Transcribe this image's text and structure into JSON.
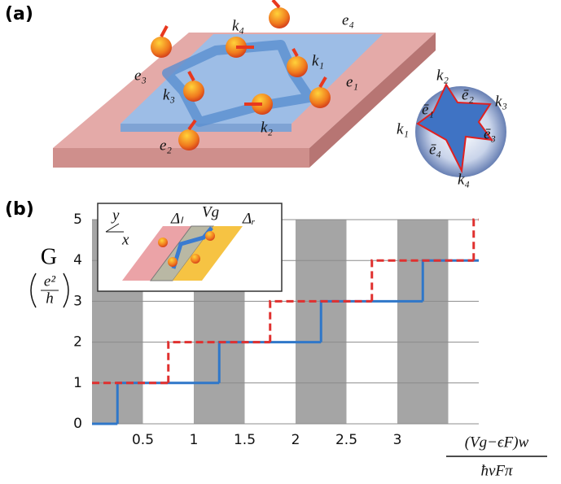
{
  "panel_a": {
    "label": "(a)",
    "labels": [
      "k₄",
      "e₄",
      "k₁",
      "e₁",
      "e₃",
      "k₃",
      "k₂",
      "e₂"
    ],
    "circle_labels": [
      "k₂",
      "ē₂",
      "k₃",
      "ē₁",
      "ē₃",
      "k₁",
      "ē₄",
      "k₄"
    ]
  },
  "chart_data": {
    "type": "step",
    "panel_label": "(b)",
    "y_label": "G",
    "y_unit_numerator": "e²",
    "y_unit_denominator": "h",
    "x_label_numerator": "(Vg−ϵF)w",
    "x_label_denominator": "ħvFπ",
    "xlim": [
      0,
      3.8
    ],
    "ylim": [
      0,
      5
    ],
    "xticks": [
      0.5,
      1,
      1.5,
      2,
      2.5,
      3
    ],
    "yticks": [
      0,
      1,
      2,
      3,
      4,
      5
    ],
    "grid": true,
    "shaded_bands": [
      [
        0,
        0.5
      ],
      [
        1,
        1.5
      ],
      [
        2,
        2.5
      ],
      [
        3,
        3.5
      ]
    ],
    "band_color": "#a5a5a5",
    "series": [
      {
        "color": "#2f77c9",
        "dashed": false,
        "x": [
          0,
          0.25,
          1.25,
          2.25,
          3.25
        ],
        "values": [
          0,
          1,
          2,
          3,
          4
        ]
      },
      {
        "color": "#e0302f",
        "dashed": true,
        "x": [
          0,
          0.75,
          1.75,
          2.75,
          3.75
        ],
        "values": [
          1,
          2,
          3,
          4,
          5
        ]
      }
    ],
    "inset": {
      "axis_y": "y",
      "axis_x": "x",
      "left_label": "Δₗ",
      "gate_label": "Vg",
      "right_label": "Δᵣ"
    }
  }
}
